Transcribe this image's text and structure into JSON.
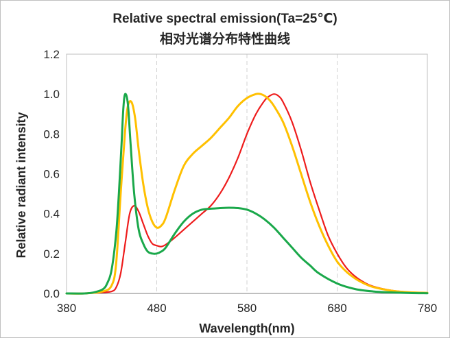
{
  "chart_data": {
    "type": "line",
    "title": "Relative spectral emission(Ta=25℃)",
    "subtitle": "相对光谱分布特性曲线",
    "xlabel": "Wavelength(nm)",
    "ylabel": "Relative radiant intensity",
    "xlim": [
      380,
      780
    ],
    "ylim": [
      0,
      1.2
    ],
    "xticks": [
      380,
      480,
      580,
      680,
      780
    ],
    "xtick_labels": [
      "380",
      "480",
      "580",
      "680",
      "780"
    ],
    "yticks": [
      0,
      0.2,
      0.4,
      0.6,
      0.8,
      1.0,
      1.2
    ],
    "ytick_labels": [
      "0.0",
      "0.2",
      "0.4",
      "0.6",
      "0.8",
      "1.0",
      "1.2"
    ],
    "grid": "vertical dashed",
    "legend": "none",
    "series": [
      {
        "color": "#ee1c1c",
        "x": [
          380,
          400,
          420,
          430,
          435,
          440,
          445,
          450,
          455,
          460,
          465,
          470,
          475,
          480,
          485,
          490,
          500,
          510,
          520,
          530,
          540,
          550,
          560,
          570,
          580,
          590,
          600,
          605,
          610,
          615,
          620,
          630,
          640,
          650,
          660,
          670,
          680,
          690,
          700,
          710,
          720,
          740,
          760,
          780
        ],
        "y": [
          0.0,
          0.0,
          0.005,
          0.01,
          0.03,
          0.1,
          0.25,
          0.4,
          0.44,
          0.41,
          0.35,
          0.29,
          0.25,
          0.24,
          0.235,
          0.245,
          0.28,
          0.32,
          0.36,
          0.4,
          0.44,
          0.5,
          0.58,
          0.68,
          0.8,
          0.9,
          0.97,
          0.99,
          1.0,
          0.99,
          0.96,
          0.86,
          0.72,
          0.56,
          0.42,
          0.29,
          0.2,
          0.13,
          0.085,
          0.055,
          0.035,
          0.015,
          0.006,
          0.003
        ]
      },
      {
        "color": "#ffc000",
        "x": [
          380,
          400,
          420,
          430,
          435,
          440,
          445,
          448,
          452,
          456,
          460,
          465,
          470,
          475,
          480,
          485,
          490,
          500,
          510,
          520,
          530,
          540,
          550,
          560,
          570,
          580,
          590,
          595,
          600,
          605,
          610,
          620,
          630,
          640,
          650,
          660,
          670,
          680,
          690,
          700,
          710,
          720,
          740,
          760,
          780
        ],
        "y": [
          0.0,
          0.0,
          0.01,
          0.04,
          0.15,
          0.5,
          0.82,
          0.94,
          0.96,
          0.88,
          0.72,
          0.55,
          0.43,
          0.36,
          0.33,
          0.34,
          0.38,
          0.52,
          0.64,
          0.7,
          0.74,
          0.78,
          0.83,
          0.88,
          0.94,
          0.98,
          1.0,
          1.0,
          0.99,
          0.97,
          0.94,
          0.86,
          0.74,
          0.6,
          0.46,
          0.34,
          0.24,
          0.16,
          0.11,
          0.075,
          0.05,
          0.032,
          0.014,
          0.006,
          0.003
        ]
      },
      {
        "color": "#1aa84a",
        "x": [
          380,
          400,
          410,
          420,
          425,
          430,
          435,
          438,
          441,
          443,
          445,
          448,
          451,
          455,
          460,
          465,
          470,
          475,
          480,
          485,
          490,
          500,
          510,
          520,
          530,
          540,
          550,
          560,
          570,
          580,
          590,
          600,
          610,
          620,
          630,
          640,
          650,
          660,
          680,
          700,
          720,
          740,
          760,
          780
        ],
        "y": [
          0.0,
          0.0,
          0.005,
          0.02,
          0.05,
          0.12,
          0.3,
          0.5,
          0.75,
          0.93,
          1.0,
          0.95,
          0.75,
          0.5,
          0.32,
          0.25,
          0.21,
          0.2,
          0.2,
          0.21,
          0.23,
          0.3,
          0.36,
          0.4,
          0.42,
          0.425,
          0.428,
          0.43,
          0.428,
          0.42,
          0.4,
          0.37,
          0.33,
          0.28,
          0.23,
          0.18,
          0.14,
          0.1,
          0.05,
          0.022,
          0.01,
          0.005,
          0.002,
          0.001
        ]
      }
    ]
  }
}
